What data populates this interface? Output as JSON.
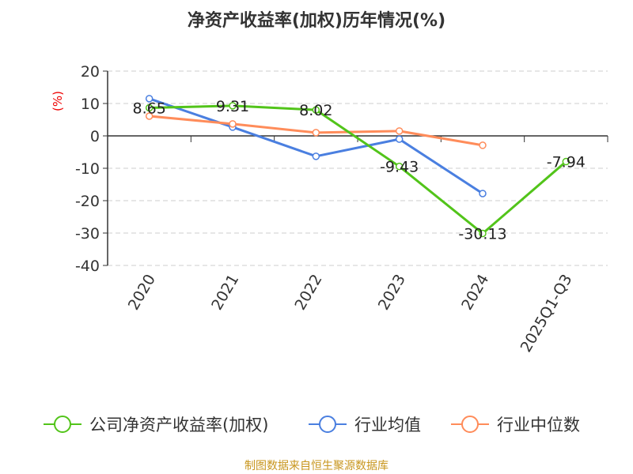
{
  "chart_data": {
    "type": "line",
    "title": "净资产收益率(加权)历年情况(%)",
    "ylabel": "(%)",
    "ylim": [
      -40,
      20
    ],
    "yticks": [
      20,
      10,
      0,
      -10,
      -20,
      -30,
      -40
    ],
    "categories": [
      "2020",
      "2021",
      "2022",
      "2023",
      "2024",
      "2025Q1-Q3"
    ],
    "grid": true,
    "legend_position": "bottom",
    "series": [
      {
        "name": "公司净资产收益率(加权)",
        "color": "#52c41a",
        "values": [
          8.65,
          9.31,
          8.02,
          -9.43,
          -30.13,
          -7.94
        ],
        "labels": [
          "8.65",
          "9.31",
          "8.02",
          "-9.43",
          "-30.13",
          "-7.94"
        ]
      },
      {
        "name": "行业均值",
        "color": "#4a7fe0",
        "values": [
          11.5,
          2.7,
          -6.3,
          -1.0,
          -17.8,
          null
        ]
      },
      {
        "name": "行业中位数",
        "color": "#ff8c5a",
        "values": [
          6.1,
          3.7,
          1.0,
          1.5,
          -2.9,
          null
        ]
      }
    ]
  },
  "source": "制图数据来自恒生聚源数据库"
}
